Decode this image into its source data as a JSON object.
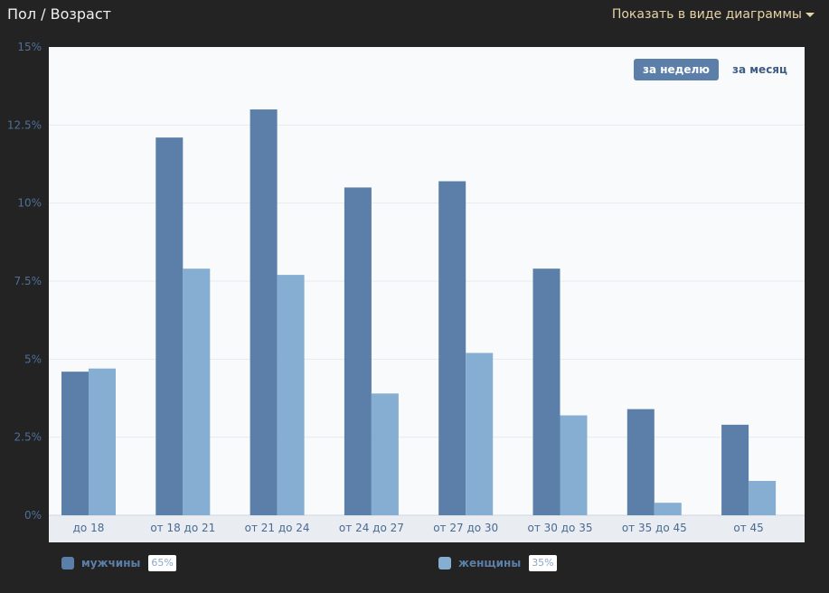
{
  "header": {
    "title": "Пол / Возраст",
    "view_toggle": "Показать в виде диаграммы"
  },
  "period": {
    "week": "за неделю",
    "month": "за месяц",
    "active": "week"
  },
  "legend": {
    "men_label": "мужчины",
    "men_pct": "65%",
    "women_label": "женщины",
    "women_pct": "35%"
  },
  "colors": {
    "men": "#5b7fa8",
    "women": "#86aed2",
    "plot_background": "#f9fafb",
    "xaxis_band": "#e9ecf0"
  },
  "chart_data": {
    "type": "bar",
    "categories": [
      "до 18",
      "от 18 до 21",
      "от 21 до 24",
      "от 24 до 27",
      "от 27 до 30",
      "от 30 до 35",
      "от 35 до 45",
      "от 45"
    ],
    "series": [
      {
        "name": "мужчины",
        "values": [
          4.6,
          12.1,
          13.0,
          10.5,
          10.7,
          7.9,
          3.4,
          2.9
        ]
      },
      {
        "name": "женщины",
        "values": [
          4.7,
          7.9,
          7.7,
          3.9,
          5.2,
          3.2,
          0.4,
          1.1
        ]
      }
    ],
    "yticks": [
      "0%",
      "2.5%",
      "5%",
      "7.5%",
      "10%",
      "12.5%",
      "15%"
    ],
    "ylim": [
      0,
      15
    ],
    "grid": true,
    "legend_position": "bottom"
  }
}
